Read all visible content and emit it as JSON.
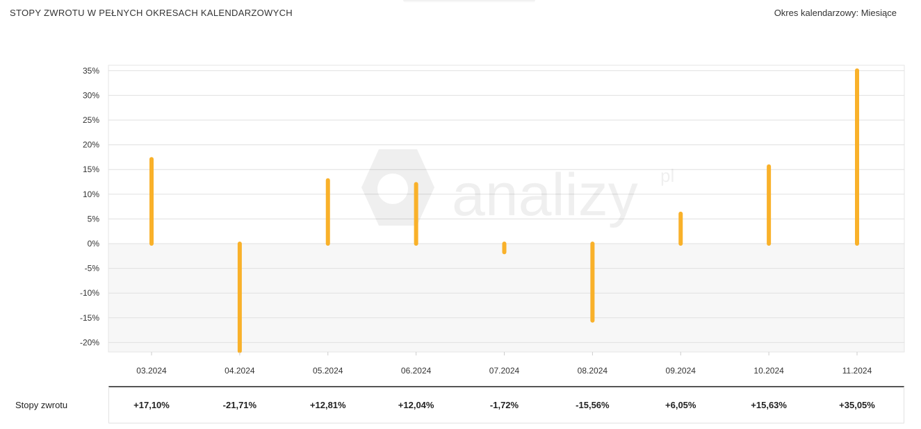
{
  "header": {
    "title": "STOPY ZWROTU W PEŁNYCH OKRESACH KALENDARZOWYCH",
    "period_label": "Okres kalendarzowy:",
    "period_value": "Miesiące"
  },
  "watermark": {
    "text": "analizy",
    "suffix": "pl"
  },
  "colors": {
    "bar": "#F9B12A",
    "grid": "#e0e0e0",
    "negative_zone": "#f7f7f7",
    "axis": "#555555"
  },
  "chart_data": {
    "type": "bar",
    "categories": [
      "03.2024",
      "04.2024",
      "05.2024",
      "06.2024",
      "07.2024",
      "08.2024",
      "09.2024",
      "10.2024",
      "11.2024"
    ],
    "values": [
      17.1,
      -21.71,
      12.81,
      12.04,
      -1.72,
      -15.56,
      6.05,
      15.63,
      35.05
    ],
    "ylim": [
      -22,
      36
    ],
    "yticks": [
      35,
      30,
      25,
      20,
      15,
      10,
      5,
      0,
      -5,
      -10,
      -15,
      -20
    ],
    "ytick_labels": [
      "35%",
      "30%",
      "25%",
      "20%",
      "15%",
      "10%",
      "5%",
      "0%",
      "-5%",
      "-10%",
      "-15%",
      "-20%"
    ],
    "grid": true
  },
  "table": {
    "row_label": "Stopy zwrotu",
    "values": [
      "+17,10%",
      "-21,71%",
      "+12,81%",
      "+12,04%",
      "-1,72%",
      "-15,56%",
      "+6,05%",
      "+15,63%",
      "+35,05%"
    ]
  }
}
